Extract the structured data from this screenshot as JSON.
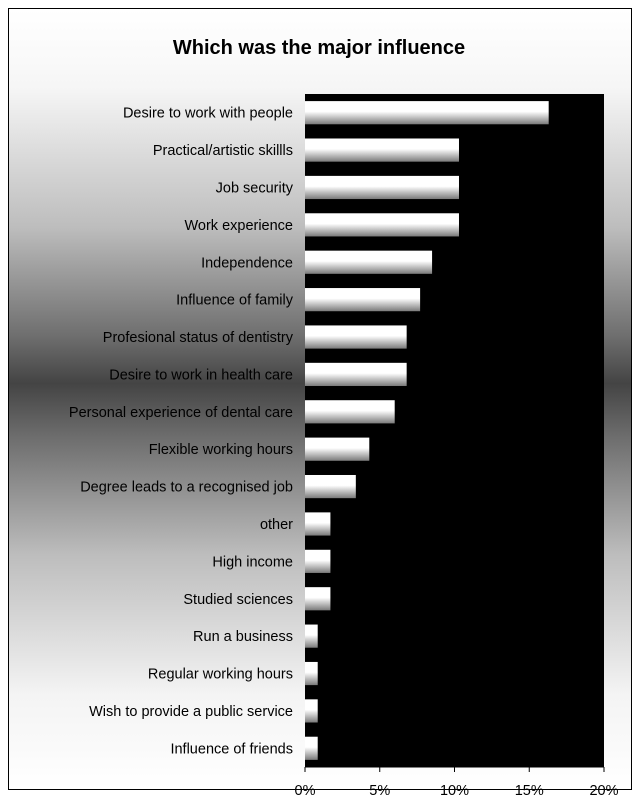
{
  "chart_data": {
    "type": "bar",
    "orientation": "horizontal",
    "title": "Which was the major influence",
    "categories": [
      "Desire to work with people",
      "Practical/artistic skillls",
      "Job security",
      "Work experience",
      "Independence",
      "Influence of family",
      "Profesional status of dentistry",
      "Desire to work in health care",
      "Personal experience of dental care",
      "Flexible working hours",
      "Degree leads to a recognised job",
      "other",
      "High income",
      "Studied sciences",
      "Run a business",
      "Regular working hours",
      "Wish to provide a public service",
      "Influence of friends"
    ],
    "values": [
      16.3,
      10.3,
      10.3,
      10.3,
      8.5,
      7.7,
      6.8,
      6.8,
      6.0,
      4.3,
      3.4,
      1.7,
      1.7,
      1.7,
      0.85,
      0.85,
      0.85,
      0.85
    ],
    "xlim": [
      0,
      20
    ],
    "x_ticks": [
      "0%",
      "5%",
      "10%",
      "15%",
      "20%"
    ],
    "xlabel": "",
    "ylabel": "",
    "grid": false,
    "legend": "none",
    "colors": {
      "plot_background": "#000000",
      "bar_light": "#ffffff",
      "bar_dark": "#7a7a7a"
    }
  }
}
